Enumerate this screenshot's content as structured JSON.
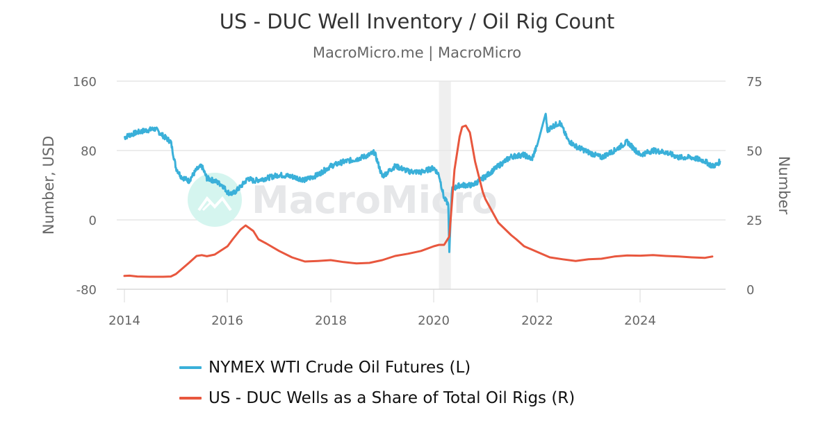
{
  "header": {
    "title": "US - DUC Well Inventory / Oil Rig Count",
    "subtitle": "MacroMicro.me | MacroMicro"
  },
  "watermark": {
    "text": "MacroMicro",
    "icon": "macromicro-logo-icon"
  },
  "colors": {
    "wti": "#3ab0d9",
    "duc": "#e8573e",
    "grid": "#e6e6e6",
    "recession": "#efefef",
    "axis_text": "#666666"
  },
  "legend": {
    "items": [
      {
        "label": "NYMEX WTI Crude Oil Futures (L)",
        "color": "#3ab0d9"
      },
      {
        "label": "US - DUC Wells as a Share of Total Oil Rigs (R)",
        "color": "#e8573e"
      }
    ]
  },
  "axes": {
    "left": {
      "title": "Number, USD",
      "ticks": [
        "160",
        "80",
        "0",
        "-80"
      ]
    },
    "right": {
      "title": "Number",
      "ticks": [
        "75",
        "50",
        "25",
        "0"
      ]
    },
    "x": {
      "ticks": [
        "2014",
        "2016",
        "2018",
        "2020",
        "2022",
        "2024"
      ]
    }
  },
  "chart_data": {
    "type": "line",
    "title": "US - DUC Well Inventory / Oil Rig Count",
    "subtitle": "MacroMicro.me | MacroMicro",
    "xlabel": "",
    "ylabel": "Number, USD",
    "y2label": "Number",
    "ylim": [
      -80,
      160
    ],
    "y2lim": [
      0,
      75
    ],
    "xlim": [
      2014.0,
      2025.6
    ],
    "grid": true,
    "legend_position": "bottom",
    "shaded_regions": [
      {
        "label": "recession",
        "x": [
          2020.1,
          2020.33
        ]
      }
    ],
    "series": [
      {
        "name": "NYMEX WTI Crude Oil Futures (L)",
        "axis": "left",
        "color": "#3ab0d9",
        "x": [
          2014.0,
          2014.1,
          2014.25,
          2014.4,
          2014.5,
          2014.6,
          2014.75,
          2014.9,
          2015.0,
          2015.1,
          2015.25,
          2015.4,
          2015.5,
          2015.6,
          2015.75,
          2015.9,
          2016.0,
          2016.1,
          2016.25,
          2016.4,
          2016.5,
          2016.75,
          2017.0,
          2017.25,
          2017.5,
          2017.75,
          2018.0,
          2018.25,
          2018.5,
          2018.75,
          2018.85,
          2019.0,
          2019.25,
          2019.35,
          2019.5,
          2019.75,
          2020.0,
          2020.1,
          2020.2,
          2020.28,
          2020.3,
          2020.35,
          2020.5,
          2020.75,
          2021.0,
          2021.25,
          2021.5,
          2021.75,
          2021.9,
          2022.0,
          2022.17,
          2022.2,
          2022.3,
          2022.45,
          2022.6,
          2022.75,
          2023.0,
          2023.25,
          2023.5,
          2023.75,
          2024.0,
          2024.25,
          2024.5,
          2024.75,
          2025.0,
          2025.25,
          2025.4,
          2025.5,
          2025.55
        ],
        "values": [
          95,
          98,
          101,
          103,
          104,
          105,
          97,
          90,
          60,
          50,
          45,
          58,
          62,
          48,
          45,
          40,
          32,
          30,
          38,
          48,
          45,
          48,
          52,
          50,
          46,
          52,
          62,
          67,
          70,
          75,
          78,
          50,
          62,
          60,
          56,
          55,
          60,
          52,
          25,
          18,
          -37,
          35,
          40,
          40,
          50,
          62,
          73,
          75,
          70,
          85,
          123,
          103,
          108,
          112,
          92,
          85,
          78,
          72,
          80,
          90,
          75,
          80,
          78,
          72,
          72,
          68,
          62,
          64,
          68
        ]
      },
      {
        "name": "US - DUC Wells as a Share of Total Oil Rigs (R)",
        "axis": "right",
        "color": "#e8573e",
        "x": [
          2014.0,
          2014.1,
          2014.25,
          2014.5,
          2014.75,
          2014.9,
          2015.0,
          2015.25,
          2015.4,
          2015.5,
          2015.6,
          2015.75,
          2016.0,
          2016.1,
          2016.25,
          2016.35,
          2016.5,
          2016.6,
          2016.75,
          2017.0,
          2017.25,
          2017.5,
          2017.75,
          2018.0,
          2018.25,
          2018.5,
          2018.75,
          2019.0,
          2019.25,
          2019.5,
          2019.75,
          2020.0,
          2020.1,
          2020.2,
          2020.3,
          2020.4,
          2020.5,
          2020.55,
          2020.62,
          2020.7,
          2020.8,
          2020.95,
          2021.0,
          2021.25,
          2021.5,
          2021.6,
          2021.75,
          2022.0,
          2022.25,
          2022.5,
          2022.75,
          2023.0,
          2023.25,
          2023.5,
          2023.75,
          2024.0,
          2024.25,
          2024.5,
          2024.75,
          2025.0,
          2025.25,
          2025.4
        ],
        "values": [
          4.8,
          4.9,
          4.6,
          4.5,
          4.5,
          4.6,
          5.5,
          9.5,
          12,
          12.3,
          11.9,
          12.5,
          15.5,
          18,
          21.5,
          23,
          21,
          18,
          16.5,
          13.8,
          11.5,
          10,
          10.2,
          10.5,
          9.8,
          9.3,
          9.5,
          10.5,
          12,
          12.8,
          13.8,
          15.5,
          16,
          16,
          19,
          43,
          55,
          58.5,
          59,
          56.5,
          46,
          35,
          32.5,
          24,
          19.5,
          18,
          15.5,
          13.5,
          11.5,
          10.8,
          10.2,
          10.8,
          11,
          11.8,
          12.2,
          12.1,
          12.3,
          12,
          11.8,
          11.5,
          11.3,
          11.8
        ]
      }
    ]
  }
}
